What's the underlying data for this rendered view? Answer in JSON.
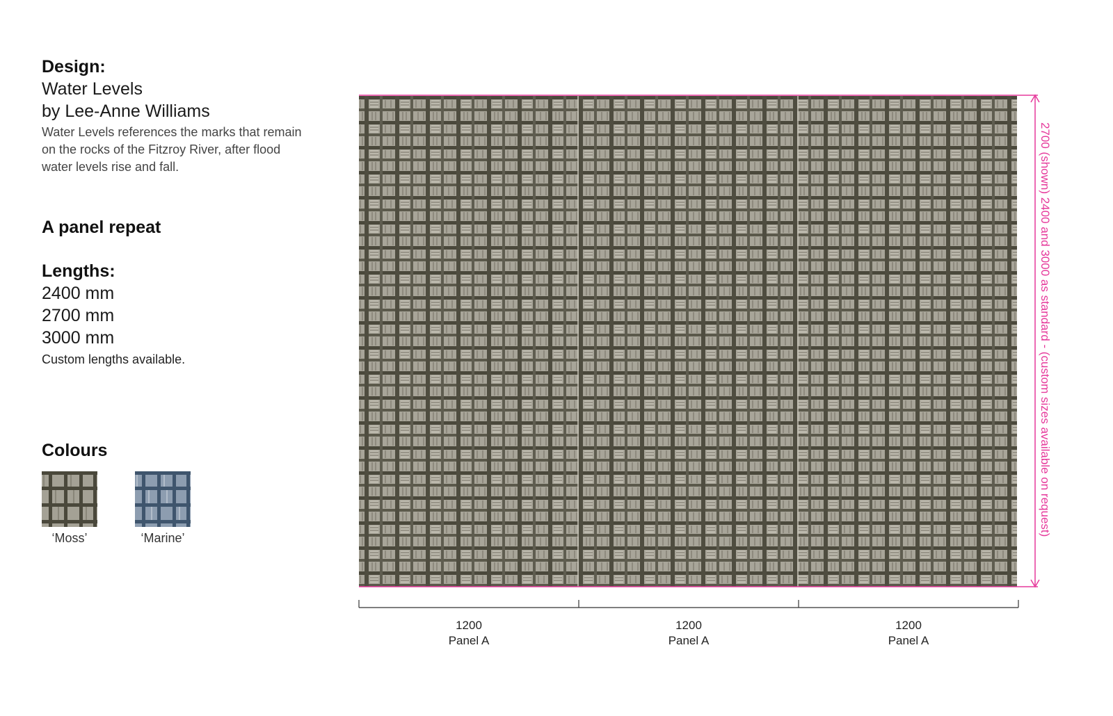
{
  "design": {
    "heading": "Design:",
    "name": "Water Levels",
    "designer": "by Lee-Anne Williams",
    "description": "Water Levels references the marks that remain on the rocks of the Fitzroy River, after flood water levels rise and fall."
  },
  "repeat": {
    "heading": "A panel repeat"
  },
  "lengths": {
    "heading": "Lengths:",
    "options": [
      "2400 mm",
      "2700 mm",
      "3000 mm"
    ],
    "note": "Custom lengths available."
  },
  "colours": {
    "heading": "Colours",
    "swatches": [
      {
        "label": "‘Moss’",
        "color": "#5d5a4c"
      },
      {
        "label": "‘Marine’",
        "color": "#4f6478"
      }
    ]
  },
  "panels": [
    {
      "width": "1200",
      "name": "Panel A"
    },
    {
      "width": "1200",
      "name": "Panel A"
    },
    {
      "width": "1200",
      "name": "Panel A"
    }
  ],
  "height_note": "2700 (shown) 2400 and 3000 as standard - (custom sizes available on request)",
  "colors": {
    "accent": "#e6399b",
    "moss_dark": "#4a483b",
    "moss_light": "#a9a69a"
  }
}
